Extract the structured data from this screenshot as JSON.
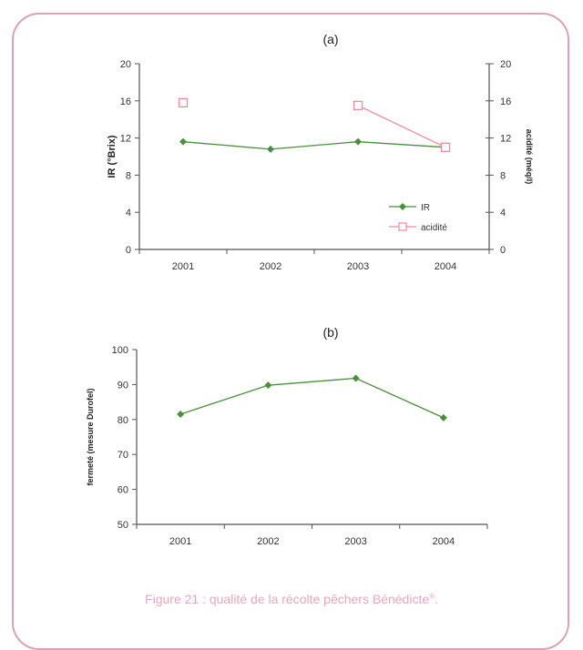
{
  "chart_data": [
    {
      "type": "line",
      "panel_label": "(a)",
      "categories": [
        "2001",
        "2002",
        "2003",
        "2004"
      ],
      "series": [
        {
          "name": "IR",
          "axis": "left",
          "values": [
            11.6,
            10.8,
            11.6,
            11.0
          ],
          "color": "#4a8f3a",
          "marker": "filled-diamond"
        },
        {
          "name": "acidité",
          "axis": "right",
          "values": [
            15.8,
            null,
            15.5,
            11.0
          ],
          "color": "#f08aa0",
          "marker": "open-square"
        }
      ],
      "ylabel": "IR (°Brix)",
      "y2label": "acidité (méq/l)",
      "ylim": [
        0,
        20
      ],
      "y2lim": [
        0,
        20
      ],
      "yticks": [
        "0",
        "4",
        "8",
        "12",
        "16",
        "20"
      ],
      "y2ticks": [
        "0",
        "4",
        "8",
        "12",
        "16",
        "20"
      ],
      "legend": "lower-right inside plot"
    },
    {
      "type": "line",
      "panel_label": "(b)",
      "categories": [
        "2001",
        "2002",
        "2003",
        "2004"
      ],
      "series": [
        {
          "values": [
            81.5,
            89.8,
            91.8,
            80.5
          ],
          "color": "#4a8f3a",
          "marker": "filled-diamond"
        }
      ],
      "ylabel": "fermeté (mesure Durofel)",
      "ylim": [
        50,
        100
      ],
      "yticks": [
        "50",
        "60",
        "70",
        "80",
        "90",
        "100"
      ]
    }
  ],
  "caption": {
    "text": "Figure 21 : qualité de la récolte pêchers Bénédicte",
    "superscript": "®",
    "tail": "."
  },
  "colors": {
    "frame": "#d9a3b4",
    "caption": "#e8a9bc",
    "axis": "#555555"
  }
}
